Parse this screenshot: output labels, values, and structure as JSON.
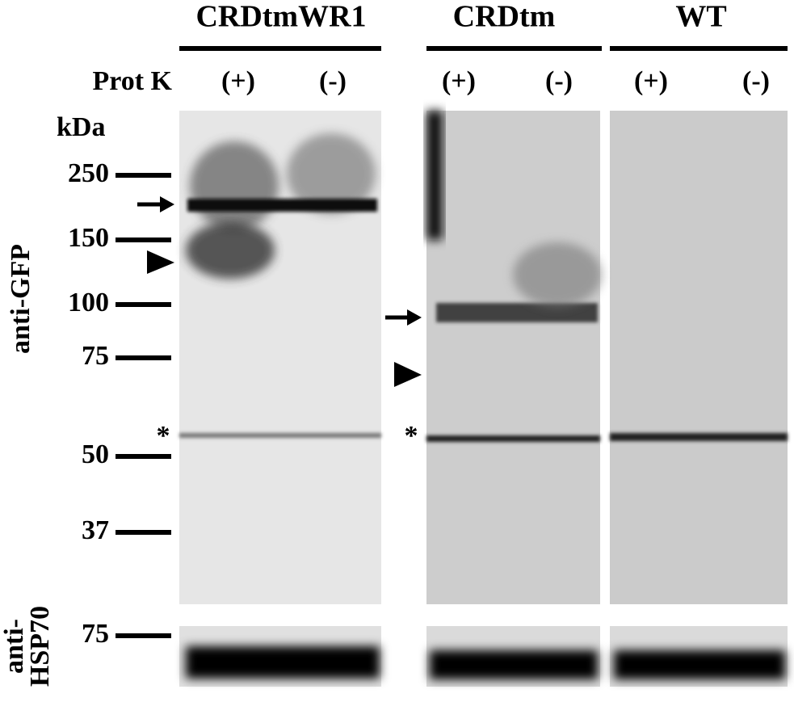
{
  "groups": [
    {
      "label": "CRDtmWR1",
      "lanes": [
        "(+)",
        "(-)"
      ]
    },
    {
      "label": "CRDtm",
      "lanes": [
        "(+)",
        "(-)"
      ]
    },
    {
      "label": "WT",
      "lanes": [
        "(+)",
        "(-)"
      ]
    }
  ],
  "row_label": "Prot K",
  "unit_label": "kDa",
  "markers": [
    "250",
    "150",
    "100",
    "75",
    "50",
    "37"
  ],
  "gfp_label": "anti-GFP",
  "hsp70_label": [
    "anti-",
    "HSP70"
  ],
  "hsp70_marker": "75",
  "asterisks": [
    "*",
    "*"
  ]
}
